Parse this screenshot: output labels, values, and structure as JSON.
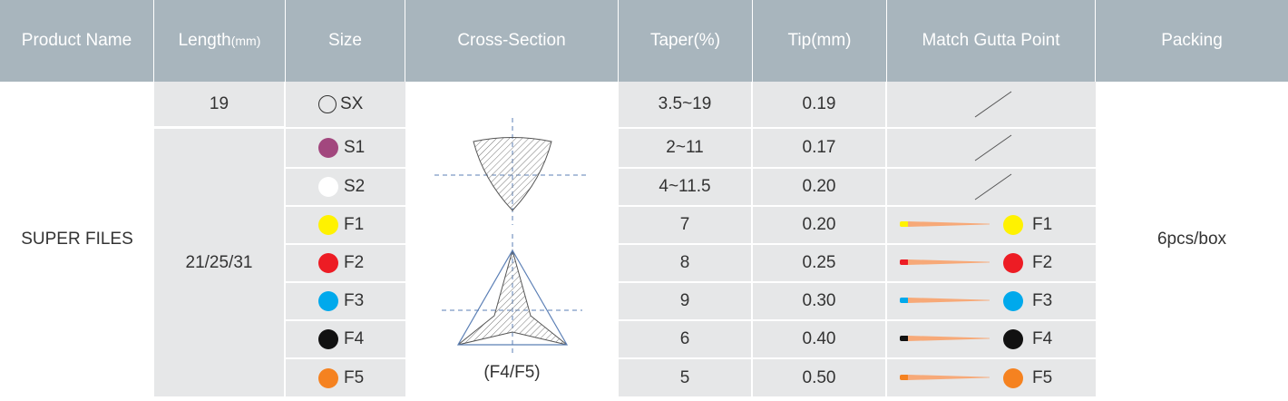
{
  "headers": {
    "product_name": "Product Name",
    "length": "Length",
    "length_unit": "(mm)",
    "size": "Size",
    "cross_section": "Cross-Section",
    "taper": "Taper(%)",
    "tip": "Tip(mm)",
    "match_gutta": "Match Gutta Point",
    "packing": "Packing"
  },
  "product_name": "SUPER FILES",
  "packing": "6pcs/box",
  "lengths": [
    "19",
    "21/25/31"
  ],
  "cross_section_caption": "(F4/F5)",
  "rows": [
    {
      "size": "SX",
      "taper": "3.5~19",
      "tip": "0.19",
      "color": "#ffffff",
      "outline": true,
      "gutta": null
    },
    {
      "size": "S1",
      "taper": "2~11",
      "tip": "0.17",
      "color": "#a2477e",
      "outline": false,
      "gutta": null
    },
    {
      "size": "S2",
      "taper": "4~11.5",
      "tip": "0.20",
      "color": "#ffffff",
      "outline": false,
      "gutta": null
    },
    {
      "size": "F1",
      "taper": "7",
      "tip": "0.20",
      "color": "#fff200",
      "outline": false,
      "gutta": "F1"
    },
    {
      "size": "F2",
      "taper": "8",
      "tip": "0.25",
      "color": "#ed1c24",
      "outline": false,
      "gutta": "F2"
    },
    {
      "size": "F3",
      "taper": "9",
      "tip": "0.30",
      "color": "#00a9ec",
      "outline": false,
      "gutta": "F3"
    },
    {
      "size": "F4",
      "taper": "6",
      "tip": "0.40",
      "color": "#111111",
      "outline": false,
      "gutta": "F4"
    },
    {
      "size": "F5",
      "taper": "5",
      "tip": "0.50",
      "color": "#f58220",
      "outline": false,
      "gutta": "F5"
    }
  ],
  "colors": {
    "header_bg": "#a8b5bd",
    "cell_grey": "#e6e7e8",
    "gutta_cone": "#f7a978"
  }
}
